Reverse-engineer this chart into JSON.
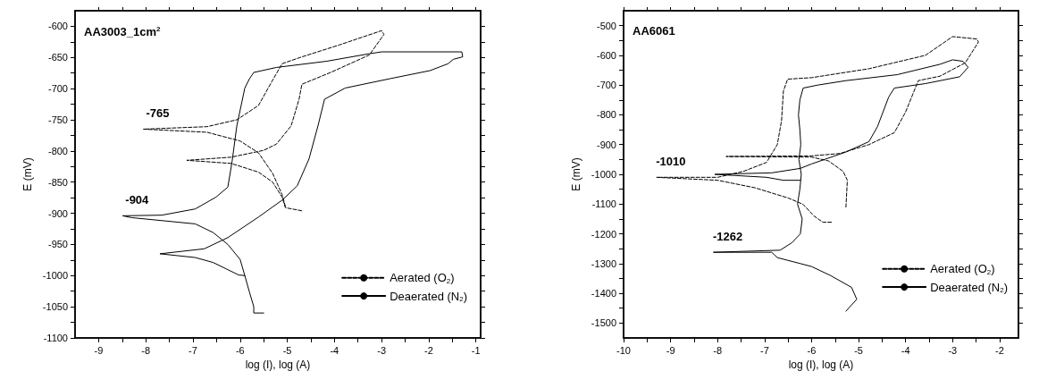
{
  "chart_data": [
    {
      "type": "line",
      "xlabel": "log (I), log (A)",
      "ylabel": "E (mV)",
      "xlim": [
        -9.5,
        -0.9
      ],
      "ylim": [
        -1100,
        -575
      ],
      "xticks": [
        -9,
        {
          "value": -8.5,
          "label": null
        },
        -8,
        {
          "value": -7.5,
          "label": null
        },
        -7,
        {
          "value": -6.5,
          "label": null
        },
        -6,
        {
          "value": -5.5,
          "label": null
        },
        -5,
        {
          "value": -4.5,
          "label": null
        },
        -4,
        {
          "value": -3.5,
          "label": null
        },
        -3,
        {
          "value": -2.5,
          "label": null
        },
        -2,
        {
          "value": -1.5,
          "label": null
        },
        -1
      ],
      "yticks": [
        -1100,
        {
          "value": -1075,
          "label": null
        },
        -1050,
        {
          "value": -1025,
          "label": null
        },
        -1000,
        {
          "value": -975,
          "label": null
        },
        -950,
        {
          "value": -925,
          "label": null
        },
        -900,
        {
          "value": -875,
          "label": null
        },
        -850,
        {
          "value": -825,
          "label": null
        },
        -800,
        {
          "value": -775,
          "label": null
        },
        -750,
        {
          "value": -725,
          "label": null
        },
        -700,
        {
          "value": -675,
          "label": null
        },
        -650,
        {
          "value": -625,
          "label": null
        },
        -600
      ],
      "grid": false,
      "legend": "bottom right",
      "marker": "none",
      "annotations": [
        "AA3003_1cm$^{2}$",
        {
          "text": "-765",
          "x": -8.05,
          "y": -765
        },
        {
          "text": "-904",
          "x": -8.49,
          "y": -904
        }
      ],
      "series": [
        {
          "name": "Aerated (O$_{2}$)",
          "color": "#000000",
          "line_style": "dashed",
          "x": [
            -5.04,
            -5.11,
            -5.31,
            -5.61,
            -6.0,
            -6.7,
            -8.05,
            -6.7,
            -6.07,
            -5.61,
            -5.33,
            -5.11,
            -4.73,
            -3.9,
            -3.0,
            -2.95,
            -3.26,
            -4.08,
            -4.69,
            -4.75,
            -4.92,
            -5.23,
            -5.5,
            -6.19,
            -7.13,
            -6.19,
            -5.61,
            -5.31,
            -5.11,
            -5.04,
            -4.69
          ],
          "values": [
            -889,
            -870,
            -836,
            -803,
            -784,
            -770,
            -765,
            -761,
            -750,
            -727,
            -689,
            -660,
            -650,
            -630,
            -607,
            -613,
            -646,
            -674,
            -693,
            -717,
            -760,
            -789,
            -799,
            -810,
            -815,
            -820,
            -834,
            -850,
            -874,
            -891,
            -896
          ]
        },
        {
          "name": "Deaerated (N$_{2}$)",
          "color": "#000000",
          "line_style": "solid",
          "x": [
            -5.5,
            -5.71,
            -5.71,
            -5.8,
            -5.9,
            -6.0,
            -6.26,
            -6.57,
            -6.95,
            -8.3,
            -8.49,
            -7.66,
            -6.95,
            -6.51,
            -6.26,
            -6.17,
            -6.07,
            -5.9,
            -5.8,
            -5.71,
            -5.23,
            -4.16,
            -3.26,
            -3.0,
            -1.3,
            -1.28,
            -1.48,
            -1.59,
            -1.97,
            -2.82,
            -3.77,
            -4.21,
            -4.35,
            -4.54,
            -4.79,
            -5.11,
            -5.61,
            -6.26,
            -6.76,
            -7.7,
            -6.95,
            -6.57,
            -6.03,
            -5.9
          ],
          "values": [
            -1060,
            -1060,
            -1050,
            -1027,
            -1000,
            -974,
            -950,
            -931,
            -917,
            -907,
            -904,
            -903,
            -893,
            -874,
            -858,
            -817,
            -760,
            -699,
            -684,
            -674,
            -666,
            -656,
            -644,
            -641,
            -641,
            -649,
            -653,
            -660,
            -671,
            -684,
            -699,
            -717,
            -760,
            -813,
            -856,
            -879,
            -906,
            -939,
            -957,
            -965,
            -971,
            -979,
            -999,
            -1000
          ]
        }
      ]
    },
    {
      "type": "line",
      "xlabel": "log (I), log (A)",
      "ylabel": "E (mV)",
      "xlim": [
        -10,
        -1.6
      ],
      "ylim": [
        -1550,
        -450
      ],
      "xticks": [
        -10,
        {
          "value": -9.5,
          "label": null
        },
        -9,
        {
          "value": -8.5,
          "label": null
        },
        -8,
        {
          "value": -7.5,
          "label": null
        },
        -7,
        {
          "value": -6.5,
          "label": null
        },
        -6,
        {
          "value": -5.5,
          "label": null
        },
        -5,
        {
          "value": -4.5,
          "label": null
        },
        -4,
        {
          "value": -3.5,
          "label": null
        },
        -3,
        {
          "value": -2.5,
          "label": null
        },
        -2
      ],
      "yticks": [
        -1500,
        {
          "value": -1450,
          "label": null
        },
        -1400,
        {
          "value": -1350,
          "label": null
        },
        -1300,
        {
          "value": -1250,
          "label": null
        },
        -1200,
        {
          "value": -1150,
          "label": null
        },
        -1100,
        {
          "value": -1050,
          "label": null
        },
        -1000,
        {
          "value": -950,
          "label": null
        },
        -900,
        {
          "value": -850,
          "label": null
        },
        -800,
        {
          "value": -750,
          "label": null
        },
        -700,
        {
          "value": -650,
          "label": null
        },
        -600,
        {
          "value": -550,
          "label": null
        },
        -500
      ],
      "grid": false,
      "legend": "bottom right",
      "marker": "none",
      "annotations": [
        "AA6061",
        {
          "text": "-1010",
          "x": -9.3,
          "y": -1010
        },
        {
          "text": "-1262",
          "x": -8.09,
          "y": -1262
        }
      ],
      "series": [
        {
          "name": "Aerated (O$_{2}$)",
          "color": "#000000",
          "line_style": "dashed",
          "x": [
            -5.58,
            -5.76,
            -5.95,
            -6.18,
            -6.49,
            -7.21,
            -8.0,
            -9.3,
            -8.0,
            -7.45,
            -6.96,
            -6.73,
            -6.64,
            -6.6,
            -6.51,
            -6.0,
            -4.78,
            -3.58,
            -3.0,
            -2.49,
            -2.45,
            -2.73,
            -3.27,
            -3.73,
            -4.0,
            -4.24,
            -4.78,
            -5.4,
            -6.0,
            -7.82,
            -6.0,
            -5.64,
            -5.33,
            -5.24,
            -5.27
          ],
          "values": [
            -1161,
            -1161,
            -1140,
            -1101,
            -1080,
            -1045,
            -1020,
            -1010,
            -1010,
            -990,
            -960,
            -900,
            -820,
            -720,
            -680,
            -675,
            -645,
            -600,
            -537,
            -545,
            -555,
            -625,
            -670,
            -685,
            -790,
            -860,
            -900,
            -930,
            -938,
            -940,
            -942,
            -955,
            -990,
            -1020,
            -1110
          ]
        },
        {
          "name": "Deaerated (N$_{2}$)",
          "color": "#000000",
          "line_style": "solid",
          "x": [
            -5.27,
            -5.04,
            -5.15,
            -5.6,
            -6.0,
            -6.24,
            -6.73,
            -6.85,
            -8.09,
            -6.67,
            -6.42,
            -6.24,
            -6.2,
            -6.3,
            -6.25,
            -6.22,
            -6.27,
            -6.23,
            -6.25,
            -6.28,
            -6.25,
            -6.18,
            -5.87,
            -5.27,
            -4.18,
            -3.27,
            -3.0,
            -2.78,
            -2.67,
            -2.85,
            -3.58,
            -4.24,
            -4.36,
            -4.6,
            -4.78,
            -5.27,
            -6.0,
            -6.24,
            -6.85,
            -8.06,
            -6.96,
            -6.6,
            -6.24
          ],
          "values": [
            -1460,
            -1420,
            -1380,
            -1340,
            -1310,
            -1300,
            -1280,
            -1262,
            -1262,
            -1255,
            -1230,
            -1200,
            -1150,
            -1100,
            -1050,
            -1000,
            -950,
            -900,
            -850,
            -800,
            -750,
            -710,
            -700,
            -685,
            -665,
            -630,
            -615,
            -620,
            -640,
            -672,
            -695,
            -710,
            -740,
            -840,
            -890,
            -925,
            -965,
            -980,
            -995,
            -1000,
            -1010,
            -1020,
            -1020
          ]
        }
      ]
    }
  ]
}
